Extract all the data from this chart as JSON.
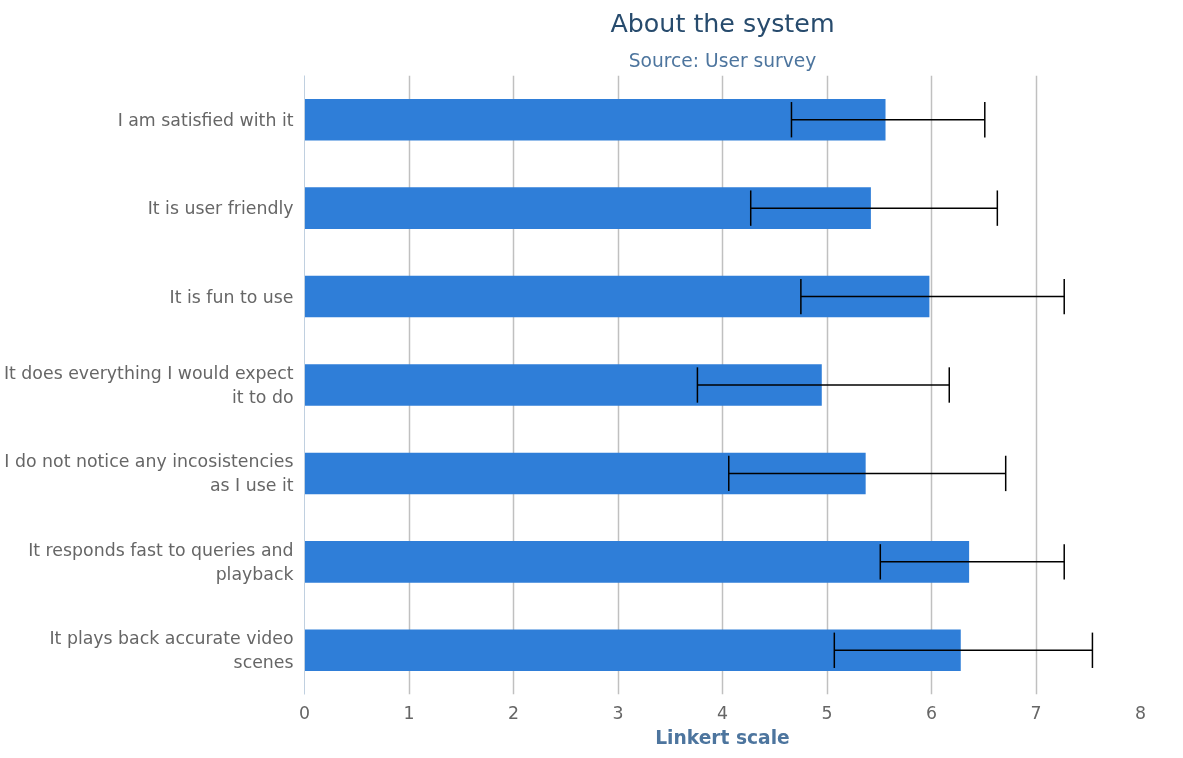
{
  "chart_data": {
    "type": "bar",
    "orientation": "horizontal",
    "title": "About the system",
    "subtitle": "Source: User survey",
    "xlabel": "Linkert scale",
    "categories": [
      "I am satisfied with it",
      "It is user friendly",
      "It is fun to use",
      "It does everything I would expect it to do",
      "I do not notice any incosistencies as I use it",
      "It responds fast to queries and playback",
      "It plays back accurate video scenes"
    ],
    "values": [
      5.56,
      5.42,
      5.98,
      4.95,
      5.37,
      6.36,
      6.28
    ],
    "errors": [
      [
        4.66,
        6.51
      ],
      [
        4.27,
        6.63
      ],
      [
        4.75,
        7.27
      ],
      [
        3.76,
        6.17
      ],
      [
        4.06,
        6.71
      ],
      [
        5.51,
        7.27
      ],
      [
        5.07,
        7.54
      ]
    ],
    "color": "#2f7ed8",
    "xlim": [
      0,
      8
    ],
    "xticks": [
      0,
      1,
      2,
      3,
      4,
      5,
      6,
      7,
      8
    ],
    "grid": "x"
  }
}
